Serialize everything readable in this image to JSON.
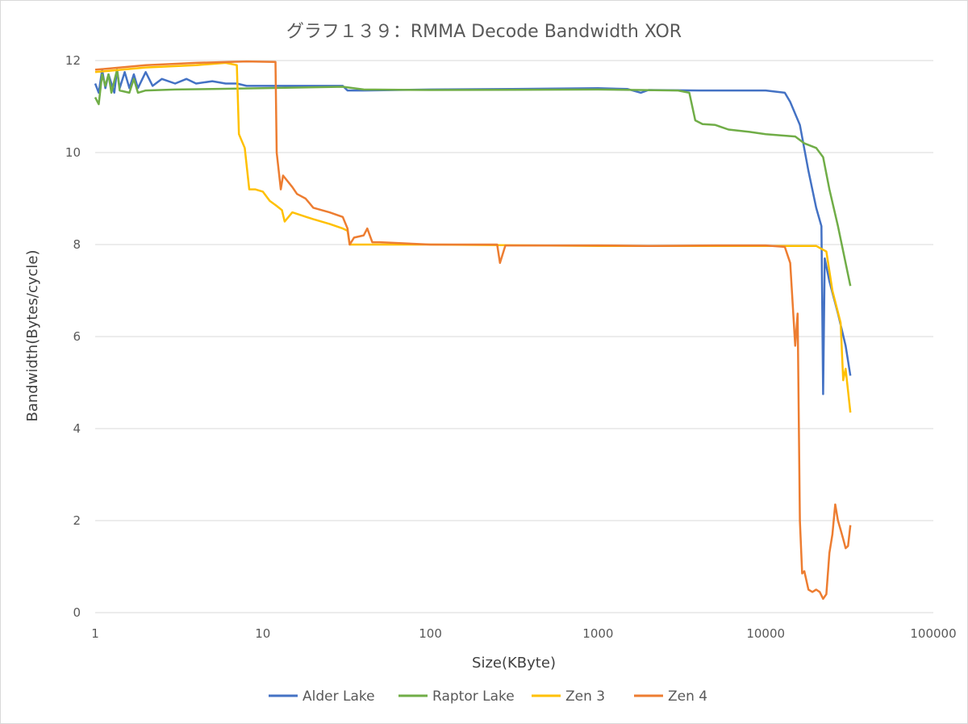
{
  "chart_data": {
    "type": "line",
    "title": "グラフ１３９：RMMA Decode Bandwidth XOR",
    "xlabel": "Size(KByte)",
    "ylabel": "Bandwidth(Bytes/cycle)",
    "xscale": "log",
    "xlim": [
      1,
      100000
    ],
    "ylim": [
      0,
      12
    ],
    "x_ticks": [
      "1",
      "10",
      "100",
      "1000",
      "10000",
      "100000"
    ],
    "y_ticks": [
      "0",
      "2",
      "4",
      "6",
      "8",
      "10",
      "12"
    ],
    "grid": "horizontal",
    "legend_position": "bottom",
    "series": [
      {
        "name": "Alder Lake",
        "color": "#4472c4",
        "points": [
          [
            1,
            11.5
          ],
          [
            1.05,
            11.3
          ],
          [
            1.1,
            11.8
          ],
          [
            1.15,
            11.4
          ],
          [
            1.2,
            11.7
          ],
          [
            1.3,
            11.3
          ],
          [
            1.35,
            11.8
          ],
          [
            1.4,
            11.4
          ],
          [
            1.5,
            11.75
          ],
          [
            1.6,
            11.4
          ],
          [
            1.7,
            11.7
          ],
          [
            1.8,
            11.4
          ],
          [
            2,
            11.75
          ],
          [
            2.2,
            11.45
          ],
          [
            2.5,
            11.6
          ],
          [
            3,
            11.5
          ],
          [
            3.5,
            11.6
          ],
          [
            4,
            11.5
          ],
          [
            5,
            11.55
          ],
          [
            6,
            11.5
          ],
          [
            7,
            11.5
          ],
          [
            8,
            11.45
          ],
          [
            10,
            11.45
          ],
          [
            15,
            11.45
          ],
          [
            20,
            11.45
          ],
          [
            30,
            11.45
          ],
          [
            32,
            11.35
          ],
          [
            40,
            11.35
          ],
          [
            100,
            11.37
          ],
          [
            300,
            11.38
          ],
          [
            1000,
            11.4
          ],
          [
            1500,
            11.38
          ],
          [
            1800,
            11.3
          ],
          [
            2000,
            11.36
          ],
          [
            4000,
            11.35
          ],
          [
            10000,
            11.35
          ],
          [
            13000,
            11.3
          ],
          [
            14000,
            11.1
          ],
          [
            16000,
            10.6
          ],
          [
            18000,
            9.6
          ],
          [
            20000,
            8.8
          ],
          [
            21500,
            8.4
          ],
          [
            22000,
            4.75
          ],
          [
            22500,
            7.7
          ],
          [
            24000,
            7.2
          ],
          [
            27000,
            6.5
          ],
          [
            30000,
            5.8
          ],
          [
            32000,
            5.15
          ]
        ]
      },
      {
        "name": "Raptor Lake",
        "color": "#70ad47",
        "points": [
          [
            1,
            11.2
          ],
          [
            1.05,
            11.05
          ],
          [
            1.1,
            11.7
          ],
          [
            1.15,
            11.45
          ],
          [
            1.2,
            11.7
          ],
          [
            1.25,
            11.3
          ],
          [
            1.35,
            11.8
          ],
          [
            1.4,
            11.35
          ],
          [
            1.6,
            11.3
          ],
          [
            1.7,
            11.6
          ],
          [
            1.8,
            11.3
          ],
          [
            2,
            11.35
          ],
          [
            3,
            11.37
          ],
          [
            5,
            11.38
          ],
          [
            10,
            11.4
          ],
          [
            20,
            11.42
          ],
          [
            30,
            11.43
          ],
          [
            40,
            11.37
          ],
          [
            100,
            11.36
          ],
          [
            1000,
            11.37
          ],
          [
            3000,
            11.35
          ],
          [
            3500,
            11.3
          ],
          [
            3800,
            10.7
          ],
          [
            4200,
            10.62
          ],
          [
            5000,
            10.6
          ],
          [
            6000,
            10.5
          ],
          [
            8000,
            10.45
          ],
          [
            10000,
            10.4
          ],
          [
            15000,
            10.35
          ],
          [
            17000,
            10.2
          ],
          [
            20000,
            10.1
          ],
          [
            22000,
            9.9
          ],
          [
            24000,
            9.2
          ],
          [
            27000,
            8.4
          ],
          [
            32000,
            7.1
          ]
        ]
      },
      {
        "name": "Zen 3",
        "color": "#ffc000",
        "points": [
          [
            1,
            11.75
          ],
          [
            2,
            11.85
          ],
          [
            4,
            11.9
          ],
          [
            6,
            11.95
          ],
          [
            7,
            11.9
          ],
          [
            7.2,
            10.4
          ],
          [
            7.8,
            10.1
          ],
          [
            8.3,
            9.2
          ],
          [
            9,
            9.2
          ],
          [
            10,
            9.15
          ],
          [
            11,
            8.95
          ],
          [
            12,
            8.85
          ],
          [
            13,
            8.75
          ],
          [
            13.5,
            8.5
          ],
          [
            15,
            8.7
          ],
          [
            20,
            8.55
          ],
          [
            25,
            8.45
          ],
          [
            30,
            8.35
          ],
          [
            32,
            8.3
          ],
          [
            33,
            8.0
          ],
          [
            40,
            8.0
          ],
          [
            100,
            8.0
          ],
          [
            1000,
            7.97
          ],
          [
            10000,
            7.97
          ],
          [
            20000,
            7.97
          ],
          [
            23000,
            7.85
          ],
          [
            25000,
            7.0
          ],
          [
            28000,
            6.3
          ],
          [
            29000,
            5.05
          ],
          [
            30000,
            5.3
          ],
          [
            32000,
            4.35
          ]
        ]
      },
      {
        "name": "Zen 4",
        "color": "#ed7d31",
        "points": [
          [
            1,
            11.8
          ],
          [
            2,
            11.9
          ],
          [
            4,
            11.95
          ],
          [
            8,
            11.98
          ],
          [
            11.9,
            11.97
          ],
          [
            12.1,
            10.0
          ],
          [
            12.8,
            9.2
          ],
          [
            13.2,
            9.5
          ],
          [
            15,
            9.25
          ],
          [
            16,
            9.1
          ],
          [
            18,
            9.0
          ],
          [
            20,
            8.8
          ],
          [
            25,
            8.7
          ],
          [
            30,
            8.6
          ],
          [
            32,
            8.35
          ],
          [
            33,
            8.0
          ],
          [
            35,
            8.15
          ],
          [
            40,
            8.2
          ],
          [
            42,
            8.35
          ],
          [
            45,
            8.05
          ],
          [
            50,
            8.05
          ],
          [
            100,
            8.0
          ],
          [
            250,
            8.0
          ],
          [
            260,
            7.6
          ],
          [
            280,
            7.98
          ],
          [
            1000,
            7.98
          ],
          [
            2000,
            7.97
          ],
          [
            5000,
            7.98
          ],
          [
            10000,
            7.98
          ],
          [
            13000,
            7.95
          ],
          [
            14000,
            7.6
          ],
          [
            15000,
            5.8
          ],
          [
            15500,
            6.5
          ],
          [
            16000,
            2.0
          ],
          [
            16500,
            0.85
          ],
          [
            17000,
            0.9
          ],
          [
            18000,
            0.5
          ],
          [
            19000,
            0.45
          ],
          [
            20000,
            0.5
          ],
          [
            21000,
            0.45
          ],
          [
            22000,
            0.3
          ],
          [
            23000,
            0.4
          ],
          [
            24000,
            1.3
          ],
          [
            25000,
            1.7
          ],
          [
            26000,
            2.35
          ],
          [
            27000,
            2.0
          ],
          [
            28000,
            1.8
          ],
          [
            29000,
            1.6
          ],
          [
            30000,
            1.4
          ],
          [
            31000,
            1.45
          ],
          [
            32000,
            1.9
          ]
        ]
      }
    ]
  }
}
